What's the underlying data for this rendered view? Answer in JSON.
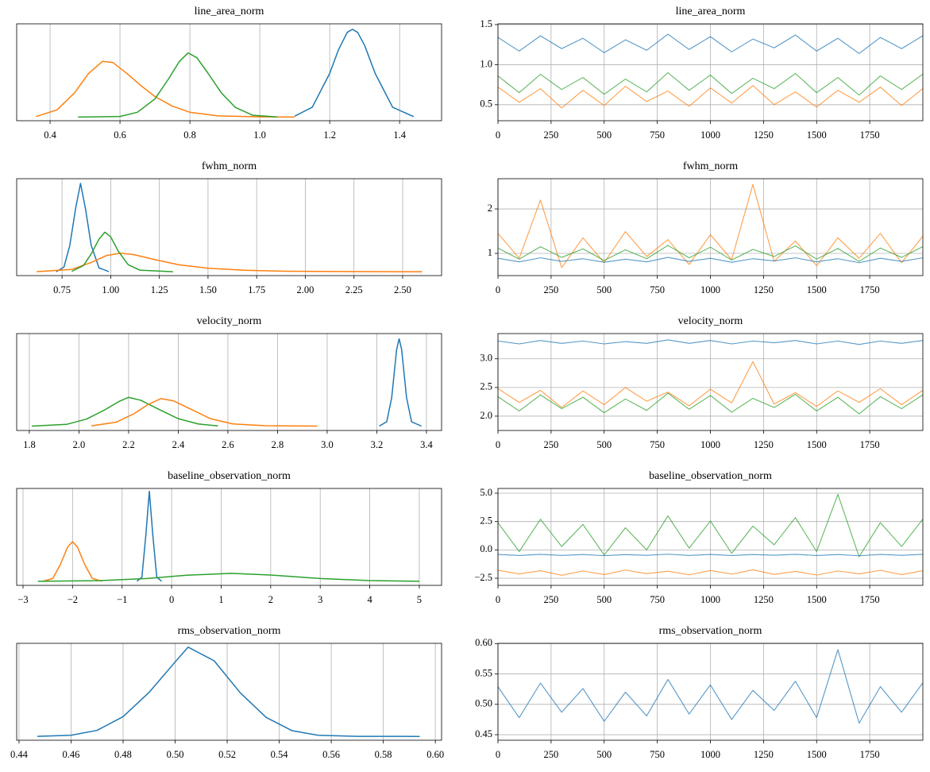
{
  "chart_data": [
    {
      "type": "line",
      "title": "line_area_norm",
      "grid": "x",
      "xlim": [
        0.3045,
        1.52
      ],
      "ylim": [
        -0.3,
        7.7
      ],
      "xticks": [
        0.4,
        0.6,
        0.8,
        {
          "value": 1,
          "label": "1.0"
        },
        1.2,
        1.4
      ],
      "series": [
        {
          "color": "#1f77b4",
          "x": [
            1.1,
            1.15,
            1.2,
            1.225,
            1.25,
            1.265,
            1.28,
            1.3,
            1.33,
            1.38,
            1.44
          ],
          "values": [
            0.08,
            0.81,
            3.61,
            5.55,
            6.99,
            7.25,
            6.99,
            5.91,
            3.61,
            0.81,
            0.04
          ]
        },
        {
          "color": "#ff7f0e",
          "x": [
            0.36,
            0.42,
            0.47,
            0.51,
            0.55,
            0.58,
            0.62,
            0.66,
            0.7,
            0.75,
            0.8,
            0.88,
            1.0,
            1.1
          ],
          "values": [
            0.05,
            0.6,
            2.0,
            3.6,
            4.6,
            4.5,
            3.6,
            2.6,
            1.7,
            0.9,
            0.4,
            0.1,
            0.02,
            0
          ]
        },
        {
          "color": "#2ca02c",
          "x": [
            0.48,
            0.6,
            0.65,
            0.7,
            0.74,
            0.77,
            0.795,
            0.82,
            0.85,
            0.89,
            0.93,
            0.98,
            1.05
          ],
          "values": [
            0,
            0.05,
            0.4,
            1.5,
            3.2,
            4.6,
            5.3,
            4.9,
            3.7,
            2.0,
            0.8,
            0.15,
            0.01
          ]
        }
      ]
    },
    {
      "type": "line",
      "title": "line_area_norm",
      "grid": "both",
      "xlim": [
        0,
        2000
      ],
      "ylim": [
        0.3,
        1.51
      ],
      "xticks": [
        0,
        250,
        500,
        750,
        1000,
        1250,
        1500,
        1750
      ],
      "yticks": [
        0.5,
        {
          "value": 1,
          "label": "1.0"
        },
        1.5
      ],
      "x": [
        0,
        100,
        200,
        300,
        400,
        500,
        600,
        700,
        800,
        900,
        1000,
        1100,
        1200,
        1300,
        1400,
        1500,
        1600,
        1700,
        1800,
        1900,
        1999
      ],
      "series": [
        {
          "color": "#1f77b4",
          "values": [
            1.34,
            1.17,
            1.36,
            1.2,
            1.33,
            1.15,
            1.31,
            1.18,
            1.38,
            1.19,
            1.35,
            1.16,
            1.32,
            1.21,
            1.37,
            1.17,
            1.33,
            1.14,
            1.34,
            1.2,
            1.36
          ]
        },
        {
          "color": "#2ca02c",
          "values": [
            0.86,
            0.65,
            0.88,
            0.69,
            0.84,
            0.63,
            0.82,
            0.66,
            0.9,
            0.68,
            0.87,
            0.64,
            0.83,
            0.7,
            0.89,
            0.65,
            0.84,
            0.62,
            0.86,
            0.69,
            0.88
          ]
        },
        {
          "color": "#ff7f0e",
          "values": [
            0.72,
            0.53,
            0.7,
            0.46,
            0.68,
            0.49,
            0.73,
            0.54,
            0.67,
            0.48,
            0.71,
            0.52,
            0.74,
            0.5,
            0.66,
            0.47,
            0.68,
            0.53,
            0.72,
            0.49,
            0.7
          ]
        }
      ]
    },
    {
      "type": "line",
      "title": "fwhm_norm",
      "grid": "x",
      "xlim": [
        0.517,
        2.7
      ],
      "ylim": [
        -0.5,
        12
      ],
      "xticks": [
        0.75,
        {
          "value": 1,
          "label": "1.00"
        },
        1.25,
        {
          "value": 1.5,
          "label": "1.50"
        },
        1.75,
        {
          "value": 2,
          "label": "2.00"
        },
        2.25,
        {
          "value": 2.5,
          "label": "2.50"
        }
      ],
      "series": [
        {
          "color": "#1f77b4",
          "x": [
            0.72,
            0.76,
            0.79,
            0.82,
            0.845,
            0.87,
            0.9,
            0.94,
            0.99
          ],
          "values": [
            0,
            0.6,
            3.4,
            8.2,
            11.4,
            8.2,
            3.4,
            0.5,
            0.02
          ]
        },
        {
          "color": "#ff7f0e",
          "x": [
            0.62,
            0.8,
            0.9,
            0.98,
            1.05,
            1.12,
            1.22,
            1.35,
            1.5,
            1.7,
            1.9,
            2.2,
            2.6
          ],
          "values": [
            0.01,
            0.3,
            1.2,
            2.1,
            2.4,
            2.2,
            1.6,
            0.9,
            0.45,
            0.18,
            0.07,
            0.02,
            0
          ]
        },
        {
          "color": "#2ca02c",
          "x": [
            0.8,
            0.86,
            0.9,
            0.94,
            0.97,
            1.0,
            1.04,
            1.09,
            1.15,
            1.32
          ],
          "values": [
            0.05,
            0.8,
            2.3,
            4.2,
            5.1,
            4.5,
            2.6,
            0.9,
            0.2,
            0
          ]
        }
      ]
    },
    {
      "type": "line",
      "title": "fwhm_norm",
      "grid": "both",
      "xlim": [
        0,
        2000
      ],
      "ylim": [
        0.5,
        2.68
      ],
      "xticks": [
        0,
        250,
        500,
        750,
        1000,
        1250,
        1500,
        1750
      ],
      "yticks": [
        1,
        2
      ],
      "x": [
        0,
        100,
        200,
        300,
        400,
        500,
        600,
        700,
        800,
        900,
        1000,
        1100,
        1200,
        1300,
        1400,
        1500,
        1600,
        1700,
        1800,
        1900,
        1999
      ],
      "series": [
        {
          "color": "#ff7f0e",
          "values": [
            1.45,
            0.89,
            2.2,
            0.68,
            1.35,
            0.79,
            1.49,
            0.93,
            1.31,
            0.75,
            1.42,
            0.86,
            2.55,
            0.82,
            1.28,
            0.72,
            1.35,
            0.89,
            1.45,
            0.79,
            1.38
          ]
        },
        {
          "color": "#1f77b4",
          "values": [
            0.89,
            0.81,
            0.9,
            0.82,
            0.88,
            0.8,
            0.87,
            0.81,
            0.91,
            0.82,
            0.89,
            0.8,
            0.88,
            0.83,
            0.9,
            0.81,
            0.88,
            0.79,
            0.89,
            0.82,
            0.9
          ]
        },
        {
          "color": "#2ca02c",
          "values": [
            1.12,
            0.87,
            1.15,
            0.91,
            1.1,
            0.84,
            1.08,
            0.88,
            1.18,
            0.9,
            1.14,
            0.85,
            1.09,
            0.93,
            1.17,
            0.87,
            1.11,
            0.82,
            1.12,
            0.91,
            1.15
          ]
        }
      ]
    },
    {
      "type": "line",
      "title": "velocity_norm",
      "grid": "x",
      "xlim": [
        1.749,
        3.461
      ],
      "ylim": [
        -1,
        21.2
      ],
      "xticks": [
        1.8,
        {
          "value": 2,
          "label": "2.0"
        },
        2.2,
        2.4,
        2.6,
        2.8,
        {
          "value": 3,
          "label": "3.0"
        },
        3.2,
        3.4
      ],
      "series": [
        {
          "color": "#1f77b4",
          "x": [
            3.21,
            3.24,
            3.26,
            3.28,
            3.29,
            3.3,
            3.32,
            3.34,
            3.38
          ],
          "values": [
            0,
            1.0,
            6.5,
            17.6,
            20,
            17.6,
            6.5,
            1.0,
            0
          ]
        },
        {
          "color": "#2ca02c",
          "x": [
            1.81,
            1.95,
            2.03,
            2.1,
            2.16,
            2.2,
            2.25,
            2.32,
            2.4,
            2.48,
            2.56
          ],
          "values": [
            0,
            0.4,
            1.6,
            3.6,
            5.6,
            6.6,
            5.9,
            3.9,
            1.7,
            0.5,
            0.05
          ]
        },
        {
          "color": "#ff7f0e",
          "x": [
            2.05,
            2.15,
            2.22,
            2.28,
            2.33,
            2.38,
            2.45,
            2.53,
            2.62,
            2.75,
            2.96
          ],
          "values": [
            0.05,
            0.9,
            2.8,
            5.0,
            6.3,
            5.8,
            3.9,
            1.7,
            0.5,
            0.1,
            0
          ]
        }
      ]
    },
    {
      "type": "line",
      "title": "velocity_norm",
      "grid": "both",
      "xlim": [
        0,
        2000
      ],
      "ylim": [
        1.75,
        3.44
      ],
      "xticks": [
        0,
        250,
        500,
        750,
        1000,
        1250,
        1500,
        1750
      ],
      "yticks": [
        {
          "value": 2,
          "label": "2.0"
        },
        2.5,
        {
          "value": 3,
          "label": "3.0"
        }
      ],
      "x": [
        0,
        100,
        200,
        300,
        400,
        500,
        600,
        700,
        800,
        900,
        1000,
        1100,
        1200,
        1300,
        1400,
        1500,
        1600,
        1700,
        1800,
        1900,
        1999
      ],
      "series": [
        {
          "color": "#1f77b4",
          "values": [
            3.31,
            3.26,
            3.32,
            3.27,
            3.31,
            3.26,
            3.3,
            3.27,
            3.33,
            3.27,
            3.32,
            3.26,
            3.31,
            3.28,
            3.32,
            3.26,
            3.31,
            3.25,
            3.31,
            3.27,
            3.32
          ]
        },
        {
          "color": "#ff7f0e",
          "values": [
            2.48,
            2.24,
            2.45,
            2.15,
            2.44,
            2.2,
            2.5,
            2.26,
            2.42,
            2.18,
            2.47,
            2.23,
            2.95,
            2.21,
            2.41,
            2.17,
            2.44,
            2.24,
            2.48,
            2.2,
            2.45
          ]
        },
        {
          "color": "#2ca02c",
          "values": [
            2.34,
            2.09,
            2.37,
            2.13,
            2.33,
            2.06,
            2.3,
            2.1,
            2.4,
            2.12,
            2.36,
            2.07,
            2.31,
            2.15,
            2.38,
            2.09,
            2.33,
            2.04,
            2.34,
            2.13,
            2.37
          ]
        }
      ]
    },
    {
      "type": "line",
      "title": "baseline_observation_norm",
      "grid": "x",
      "xlim": [
        -3.128,
        5.45
      ],
      "ylim": [
        -0.3,
        6.8
      ],
      "xticks": [
        {
          "value": -3,
          "label": "−3"
        },
        {
          "value": -2,
          "label": "−2"
        },
        {
          "value": -1,
          "label": "−1"
        },
        0,
        1,
        2,
        3,
        4,
        5
      ],
      "series": [
        {
          "color": "#1f77b4",
          "x": [
            -0.7,
            -0.6,
            -0.52,
            -0.45,
            -0.38,
            -0.3,
            -0.2
          ],
          "values": [
            0,
            0.3,
            3.4,
            6.6,
            3.4,
            0.3,
            0
          ]
        },
        {
          "color": "#ff7f0e",
          "x": [
            -2.6,
            -2.4,
            -2.25,
            -2.1,
            -2.0,
            -1.9,
            -1.75,
            -1.6,
            -1.4
          ],
          "values": [
            0,
            0.2,
            1.2,
            2.5,
            2.9,
            2.5,
            1.2,
            0.2,
            0
          ]
        },
        {
          "color": "#2ca02c",
          "x": [
            -2.7,
            -1.5,
            -0.5,
            0.3,
            1.2,
            2.0,
            3.0,
            4.0,
            5.0
          ],
          "values": [
            0,
            0.04,
            0.2,
            0.44,
            0.58,
            0.46,
            0.2,
            0.05,
            0
          ]
        }
      ]
    },
    {
      "type": "line",
      "title": "baseline_observation_norm",
      "grid": "both",
      "xlim": [
        0,
        2000
      ],
      "ylim": [
        -3.13,
        5.42
      ],
      "xticks": [
        0,
        250,
        500,
        750,
        1000,
        1250,
        1500,
        1750
      ],
      "yticks": [
        {
          "value": -2.5,
          "label": "−2.5"
        },
        {
          "value": 0,
          "label": "0.0"
        },
        2.5,
        {
          "value": 5,
          "label": "5.0"
        }
      ],
      "x": [
        0,
        100,
        200,
        300,
        400,
        500,
        600,
        700,
        800,
        900,
        1000,
        1100,
        1200,
        1300,
        1400,
        1500,
        1600,
        1700,
        1800,
        1900,
        1999
      ],
      "series": [
        {
          "color": "#2ca02c",
          "values": [
            2.4,
            -0.15,
            2.7,
            0.3,
            2.25,
            -0.45,
            1.95,
            0,
            3.0,
            0.15,
            2.55,
            -0.3,
            2.1,
            0.45,
            2.85,
            -0.15,
            4.9,
            -0.6,
            2.4,
            0.3,
            2.7
          ]
        },
        {
          "color": "#1f77b4",
          "values": [
            -0.4,
            -0.5,
            -0.39,
            -0.49,
            -0.41,
            -0.51,
            -0.42,
            -0.48,
            -0.38,
            -0.49,
            -0.4,
            -0.5,
            -0.41,
            -0.47,
            -0.39,
            -0.5,
            -0.41,
            -0.52,
            -0.4,
            -0.48,
            -0.39
          ]
        },
        {
          "color": "#ff7f0e",
          "values": [
            -1.8,
            -2.12,
            -1.84,
            -2.24,
            -1.86,
            -2.18,
            -1.78,
            -2.1,
            -1.88,
            -2.2,
            -1.82,
            -2.14,
            -1.76,
            -2.16,
            -1.9,
            -2.22,
            -1.86,
            -2.12,
            -1.8,
            -2.18,
            -1.84
          ]
        }
      ]
    },
    {
      "type": "line",
      "title": "rms_observation_norm",
      "grid": "x",
      "xlim": [
        0.4391,
        0.6024
      ],
      "ylim": [
        -1,
        24.5
      ],
      "xticks": [
        0.44,
        0.46,
        0.48,
        {
          "value": 0.5,
          "label": "0.50"
        },
        0.52,
        0.54,
        0.56,
        0.58,
        {
          "value": 0.6,
          "label": "0.60"
        }
      ],
      "series": [
        {
          "color": "#1f77b4",
          "x": [
            0.447,
            0.46,
            0.47,
            0.48,
            0.49,
            0.5,
            0.505,
            0.515,
            0.525,
            0.535,
            0.545,
            0.555,
            0.57,
            0.594
          ],
          "values": [
            0.01,
            0.3,
            1.6,
            5.2,
            11.6,
            19.6,
            23.5,
            19.9,
            11.5,
            5.0,
            1.5,
            0.3,
            0.03,
            0
          ]
        }
      ]
    },
    {
      "type": "line",
      "title": "rms_observation_norm",
      "grid": "both",
      "xlim": [
        0,
        2000
      ],
      "ylim": [
        0.4409,
        0.6004
      ],
      "xticks": [
        0,
        250,
        500,
        750,
        1000,
        1250,
        1500,
        1750
      ],
      "yticks": [
        0.45,
        {
          "value": 0.5,
          "label": "0.50"
        },
        0.55,
        {
          "value": 0.6,
          "label": "0.60"
        }
      ],
      "x": [
        0,
        100,
        200,
        300,
        400,
        500,
        600,
        700,
        800,
        900,
        1000,
        1100,
        1200,
        1300,
        1400,
        1500,
        1600,
        1700,
        1800,
        1900,
        1999
      ],
      "series": [
        {
          "color": "#1f77b4",
          "values": [
            0.529,
            0.478,
            0.535,
            0.487,
            0.526,
            0.472,
            0.52,
            0.481,
            0.541,
            0.484,
            0.532,
            0.475,
            0.523,
            0.49,
            0.538,
            0.478,
            0.59,
            0.469,
            0.529,
            0.487,
            0.535
          ]
        }
      ]
    }
  ]
}
